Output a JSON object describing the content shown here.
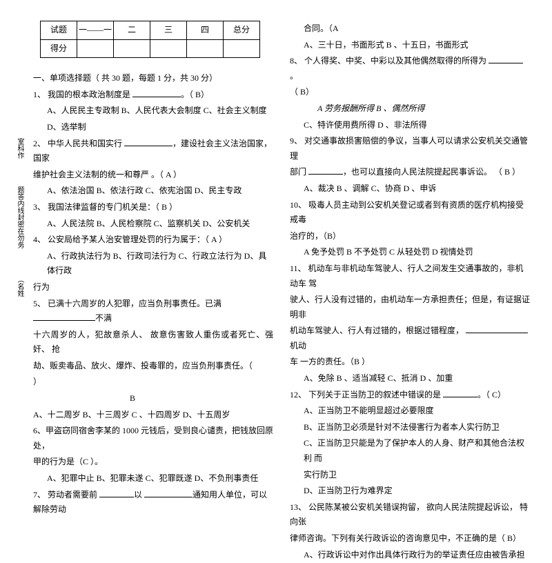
{
  "score_table": {
    "row1": [
      "试题",
      "一——一",
      "二",
      "三",
      "四",
      "总分"
    ],
    "row2": [
      "得分",
      "",
      "",
      "",
      "",
      ""
    ]
  },
  "section1_title": "一、单项选择题（ 共  30 题，每题 1 分，共 30 分）",
  "left": {
    "q1": "1、 我国的根本政治制度是 ",
    "q1_ans": "。（ B）",
    "q1_opts": "A、人民民主专政制     B、人民代表大会制度 C、社会主义制度",
    "q1_opts2": "D、选举制",
    "q2": "2、 中华人民共和国实行 ",
    "q2b": "，建设社会主义法治国家，国家",
    "q2c": "维护社会主义法制的统一和尊严 。（    A  ）",
    "q2_opts": "A、依法治国         B、依法行政  C、依宪治国 D、民主专政",
    "q3": "3、 我国法律监督的专门机关是：（  B ）",
    "q3_opts": "A、人民法院     B、人民检察院  C、监察机关 D、公安机关",
    "q4": "4、 公安局给予某人治安管理处罚的行为属于：（     A ）",
    "q4_opts": "A、行政执法行为 B、行政司法行为  C、行政立法行为 D、具 体行政",
    "q4_opts2": "行为",
    "q5": "5、 已满十六周岁的人犯罪，应当负刑事责任。已满 ",
    "q5b": "不满",
    "q5c": "十六周岁的人，犯故意杀人、  故意伤害致人重伤或者死亡、强奸、 抢",
    "q5d": "劫、贩卖毒品、放火、爆炸、投毒罪的，应当负刑事责任。（",
    "q5e": "）",
    "q5_ans": "B",
    "q5_opts": "A、十二周岁 B、十三周岁           C 、十四周岁 D、十五周岁",
    "q6": "6、甲盗窃同宿舍李某的 1000 元钱后，受到良心谴责，把钱放回原处，",
    "q6b": "甲的行为是（C  ）。",
    "q6_opts": "A、犯罪中止 B、犯罪未遂  C、犯罪既遂 D、不负刑事责任",
    "q7": "7、 劳动者需要前 ",
    "q7b": "以 ",
    "q7c": "通知用人单位，可以解除劳动"
  },
  "right": {
    "q7d": "合同。（A",
    "q7_opts": "A、三十日，书面形式        B 、十五日，书面形式",
    "q8": "8、 个人得奖、中奖、中彩以及其他偶然取得的所得为 ",
    "q8b": "。",
    "q8c": "（  B）",
    "q8_opts": "A  劳务报酬所得      B 、偶然所得",
    "q8_opts2": "C、特许使用费所得      D 、非法所得",
    "q9": "9、 对交通事故损害赔偿的争议，当事人可以请求公安机关交通管理",
    "q9b": "部门 ",
    "q9c": "，也可以直接向人民法院提起民事诉讼。      （ B ）",
    "q9_opts": "A、裁决    B 、调解         C、协商  D 、申诉",
    "q10": "10、 吸毒人员主动到公安机关登记或者到有资质的医疗机构接受戒毒",
    "q10b": "治疗的，（B）",
    "q10_opts": "A 免予处罚 B  不予处罚  C  从轻处罚  D  视情处罚",
    "q11": "11、 机动车与非机动车驾驶人、行人之间发生交通事故的，非机动车  驾",
    "q11b": "驶人、行人没有过错的，由机动车一方承担责任；但是，有证据证  明非",
    "q11c": "机动车驾驶人、行人有过错的，根据过错程度，    ",
    "q11d": "机动",
    "q11e": "车 一方的责任。（B  ）",
    "q11_opts": "A、免除      B 、适当减轻      C、抵消  D 、加重",
    "q12": "12、 下列关于正当防卫的叙述中错误的是 ",
    "q12b": "。（  C）",
    "q12_opts": "A、正当防卫不能明显超过必要限度",
    "q12_opts2": "B、正当防卫必须是针对不法侵害行为者本人实行防卫",
    "q12_opts3": "C、正当防卫只能是为了保护本人的人身、财产和其他合法权利  而",
    "q12_opts4": "实行防卫",
    "q12_opts5": "D、正当防卫行为难界定",
    "q13": "13、 公民陈某被公安机关错误拘留， 欲向人民法院提起诉讼， 特向张",
    "q13b": "律师咨询。下列有关行政诉讼的咨询意见中，不正确的是（         B）",
    "q13_opts": "A、行政诉讼中对作出具体行政行为的举证责任应由被告承担"
  },
  "side": {
    "s1": "室科作",
    "s2": "题答内线封密在勿务",
    "s3": "（名姓"
  }
}
